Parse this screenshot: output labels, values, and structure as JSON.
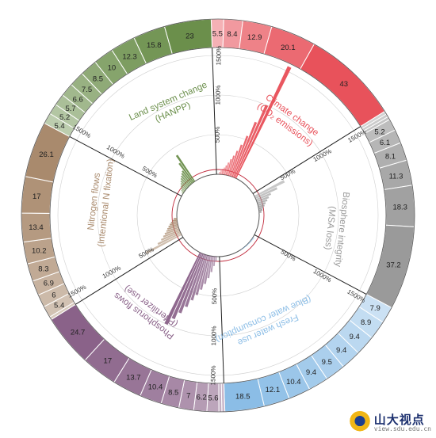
{
  "chart_data": {
    "type": "radial-bar",
    "gridlines_percent": [
      500,
      1000,
      1500
    ],
    "sectors": [
      {
        "title": "Climate change",
        "subtitle": "(CO₂ emissions)",
        "color": "#e8525b",
        "ring_values": [
          "5.5",
          "8.4",
          "12.9",
          "20.1",
          "43"
        ],
        "bars_percent": [
          30,
          50,
          70,
          90,
          120,
          160,
          210,
          260,
          330,
          420,
          550,
          750,
          1000,
          1700
        ],
        "scale_labels": [
          "1500%",
          "1000%",
          "500%"
        ]
      },
      {
        "title": "Biosphere integrity",
        "subtitle": "(MSA loss)",
        "color": "#9a9a9a",
        "ring_values": [
          "",
          "",
          "",
          "5.2",
          "6.1",
          "8.1",
          "11.3",
          "18.3",
          "37.2"
        ],
        "bars_percent": [
          420,
          300,
          200,
          160,
          130,
          100,
          80,
          60,
          45,
          30
        ],
        "scale_labels": [
          "1500%",
          "1000%",
          "500%"
        ]
      },
      {
        "title": "Fresh water use",
        "subtitle": "(Blue water consumption)",
        "color": "#8bbde6",
        "ring_values": [
          "7.9",
          "8.9",
          "9.4",
          "9.4",
          "9.5",
          "9.4",
          "10.4",
          "12.1",
          "18.5"
        ],
        "bars_percent": [
          20,
          18,
          16,
          14,
          12,
          10,
          9,
          8,
          7,
          6,
          5
        ],
        "scale_labels": [
          "1500%",
          "1000%",
          "500%"
        ]
      },
      {
        "title": "Phosphorus flows",
        "subtitle": "(P fertilizer use)",
        "color": "#8a6289",
        "ring_values": [
          "",
          "",
          "5.6",
          "6.2",
          "7",
          "8.5",
          "10.4",
          "13.7",
          "17",
          "24.7"
        ],
        "bars_percent": [
          60,
          120,
          200,
          280,
          360,
          440,
          520,
          600,
          700,
          800,
          900,
          1000
        ],
        "scale_labels": [
          "500%",
          "1000%",
          "1500%"
        ]
      },
      {
        "title": "Nitrogen flows",
        "subtitle": "(Intentional N fixation)",
        "color": "#a98a6d",
        "ring_values": [
          "",
          "5.4",
          "6",
          "6.9",
          "8.3",
          "10.2",
          "13.4",
          "17",
          "26.1"
        ],
        "bars_percent": [
          500,
          320,
          260,
          220,
          190,
          160,
          140,
          120,
          100,
          80,
          60,
          40
        ],
        "scale_labels": [
          "500%",
          "1000%",
          "1500%"
        ]
      },
      {
        "title": "Land system change",
        "subtitle": "(HANPP)",
        "color": "#6b8f4b",
        "ring_values": [
          "5.4",
          "5.2",
          "5.7",
          "6.6",
          "7.5",
          "8.5",
          "10",
          "12.3",
          "15.8",
          "23"
        ],
        "bars_percent": [
          20,
          40,
          60,
          80,
          100,
          120,
          140,
          160,
          180,
          200,
          300,
          400
        ],
        "scale_labels": [
          "500%",
          "1000%",
          "1500%"
        ]
      }
    ]
  },
  "watermark": {
    "name": "山大视点",
    "url": "view.sdu.edu.cn"
  }
}
